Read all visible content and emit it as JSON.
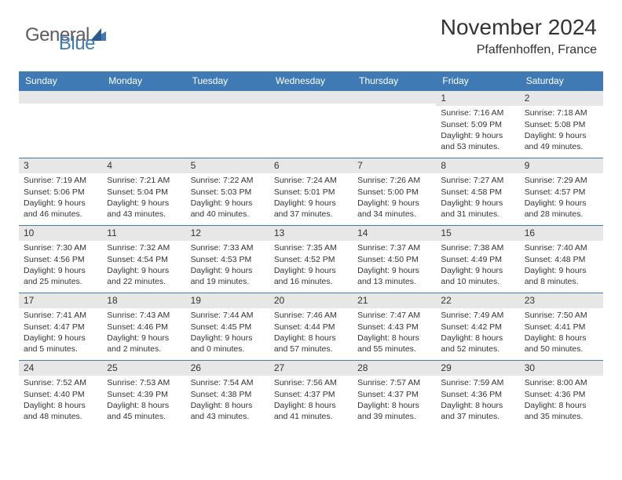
{
  "logo": {
    "text1": "General",
    "text2": "Blue"
  },
  "header": {
    "month": "November 2024",
    "location": "Pfaffenhoffen, France"
  },
  "colors": {
    "brand": "#3f7ab5",
    "header_bg": "#3f7ab5",
    "daynum_bg": "#e7e7e7",
    "text": "#333333",
    "logo_gray": "#5c5c5c"
  },
  "daynames": [
    "Sunday",
    "Monday",
    "Tuesday",
    "Wednesday",
    "Thursday",
    "Friday",
    "Saturday"
  ],
  "weeks": [
    [
      {
        "n": "",
        "sr": "",
        "ss": "",
        "dl": ""
      },
      {
        "n": "",
        "sr": "",
        "ss": "",
        "dl": ""
      },
      {
        "n": "",
        "sr": "",
        "ss": "",
        "dl": ""
      },
      {
        "n": "",
        "sr": "",
        "ss": "",
        "dl": ""
      },
      {
        "n": "",
        "sr": "",
        "ss": "",
        "dl": ""
      },
      {
        "n": "1",
        "sr": "Sunrise: 7:16 AM",
        "ss": "Sunset: 5:09 PM",
        "dl": "Daylight: 9 hours and 53 minutes."
      },
      {
        "n": "2",
        "sr": "Sunrise: 7:18 AM",
        "ss": "Sunset: 5:08 PM",
        "dl": "Daylight: 9 hours and 49 minutes."
      }
    ],
    [
      {
        "n": "3",
        "sr": "Sunrise: 7:19 AM",
        "ss": "Sunset: 5:06 PM",
        "dl": "Daylight: 9 hours and 46 minutes."
      },
      {
        "n": "4",
        "sr": "Sunrise: 7:21 AM",
        "ss": "Sunset: 5:04 PM",
        "dl": "Daylight: 9 hours and 43 minutes."
      },
      {
        "n": "5",
        "sr": "Sunrise: 7:22 AM",
        "ss": "Sunset: 5:03 PM",
        "dl": "Daylight: 9 hours and 40 minutes."
      },
      {
        "n": "6",
        "sr": "Sunrise: 7:24 AM",
        "ss": "Sunset: 5:01 PM",
        "dl": "Daylight: 9 hours and 37 minutes."
      },
      {
        "n": "7",
        "sr": "Sunrise: 7:26 AM",
        "ss": "Sunset: 5:00 PM",
        "dl": "Daylight: 9 hours and 34 minutes."
      },
      {
        "n": "8",
        "sr": "Sunrise: 7:27 AM",
        "ss": "Sunset: 4:58 PM",
        "dl": "Daylight: 9 hours and 31 minutes."
      },
      {
        "n": "9",
        "sr": "Sunrise: 7:29 AM",
        "ss": "Sunset: 4:57 PM",
        "dl": "Daylight: 9 hours and 28 minutes."
      }
    ],
    [
      {
        "n": "10",
        "sr": "Sunrise: 7:30 AM",
        "ss": "Sunset: 4:56 PM",
        "dl": "Daylight: 9 hours and 25 minutes."
      },
      {
        "n": "11",
        "sr": "Sunrise: 7:32 AM",
        "ss": "Sunset: 4:54 PM",
        "dl": "Daylight: 9 hours and 22 minutes."
      },
      {
        "n": "12",
        "sr": "Sunrise: 7:33 AM",
        "ss": "Sunset: 4:53 PM",
        "dl": "Daylight: 9 hours and 19 minutes."
      },
      {
        "n": "13",
        "sr": "Sunrise: 7:35 AM",
        "ss": "Sunset: 4:52 PM",
        "dl": "Daylight: 9 hours and 16 minutes."
      },
      {
        "n": "14",
        "sr": "Sunrise: 7:37 AM",
        "ss": "Sunset: 4:50 PM",
        "dl": "Daylight: 9 hours and 13 minutes."
      },
      {
        "n": "15",
        "sr": "Sunrise: 7:38 AM",
        "ss": "Sunset: 4:49 PM",
        "dl": "Daylight: 9 hours and 10 minutes."
      },
      {
        "n": "16",
        "sr": "Sunrise: 7:40 AM",
        "ss": "Sunset: 4:48 PM",
        "dl": "Daylight: 9 hours and 8 minutes."
      }
    ],
    [
      {
        "n": "17",
        "sr": "Sunrise: 7:41 AM",
        "ss": "Sunset: 4:47 PM",
        "dl": "Daylight: 9 hours and 5 minutes."
      },
      {
        "n": "18",
        "sr": "Sunrise: 7:43 AM",
        "ss": "Sunset: 4:46 PM",
        "dl": "Daylight: 9 hours and 2 minutes."
      },
      {
        "n": "19",
        "sr": "Sunrise: 7:44 AM",
        "ss": "Sunset: 4:45 PM",
        "dl": "Daylight: 9 hours and 0 minutes."
      },
      {
        "n": "20",
        "sr": "Sunrise: 7:46 AM",
        "ss": "Sunset: 4:44 PM",
        "dl": "Daylight: 8 hours and 57 minutes."
      },
      {
        "n": "21",
        "sr": "Sunrise: 7:47 AM",
        "ss": "Sunset: 4:43 PM",
        "dl": "Daylight: 8 hours and 55 minutes."
      },
      {
        "n": "22",
        "sr": "Sunrise: 7:49 AM",
        "ss": "Sunset: 4:42 PM",
        "dl": "Daylight: 8 hours and 52 minutes."
      },
      {
        "n": "23",
        "sr": "Sunrise: 7:50 AM",
        "ss": "Sunset: 4:41 PM",
        "dl": "Daylight: 8 hours and 50 minutes."
      }
    ],
    [
      {
        "n": "24",
        "sr": "Sunrise: 7:52 AM",
        "ss": "Sunset: 4:40 PM",
        "dl": "Daylight: 8 hours and 48 minutes."
      },
      {
        "n": "25",
        "sr": "Sunrise: 7:53 AM",
        "ss": "Sunset: 4:39 PM",
        "dl": "Daylight: 8 hours and 45 minutes."
      },
      {
        "n": "26",
        "sr": "Sunrise: 7:54 AM",
        "ss": "Sunset: 4:38 PM",
        "dl": "Daylight: 8 hours and 43 minutes."
      },
      {
        "n": "27",
        "sr": "Sunrise: 7:56 AM",
        "ss": "Sunset: 4:37 PM",
        "dl": "Daylight: 8 hours and 41 minutes."
      },
      {
        "n": "28",
        "sr": "Sunrise: 7:57 AM",
        "ss": "Sunset: 4:37 PM",
        "dl": "Daylight: 8 hours and 39 minutes."
      },
      {
        "n": "29",
        "sr": "Sunrise: 7:59 AM",
        "ss": "Sunset: 4:36 PM",
        "dl": "Daylight: 8 hours and 37 minutes."
      },
      {
        "n": "30",
        "sr": "Sunrise: 8:00 AM",
        "ss": "Sunset: 4:36 PM",
        "dl": "Daylight: 8 hours and 35 minutes."
      }
    ]
  ]
}
